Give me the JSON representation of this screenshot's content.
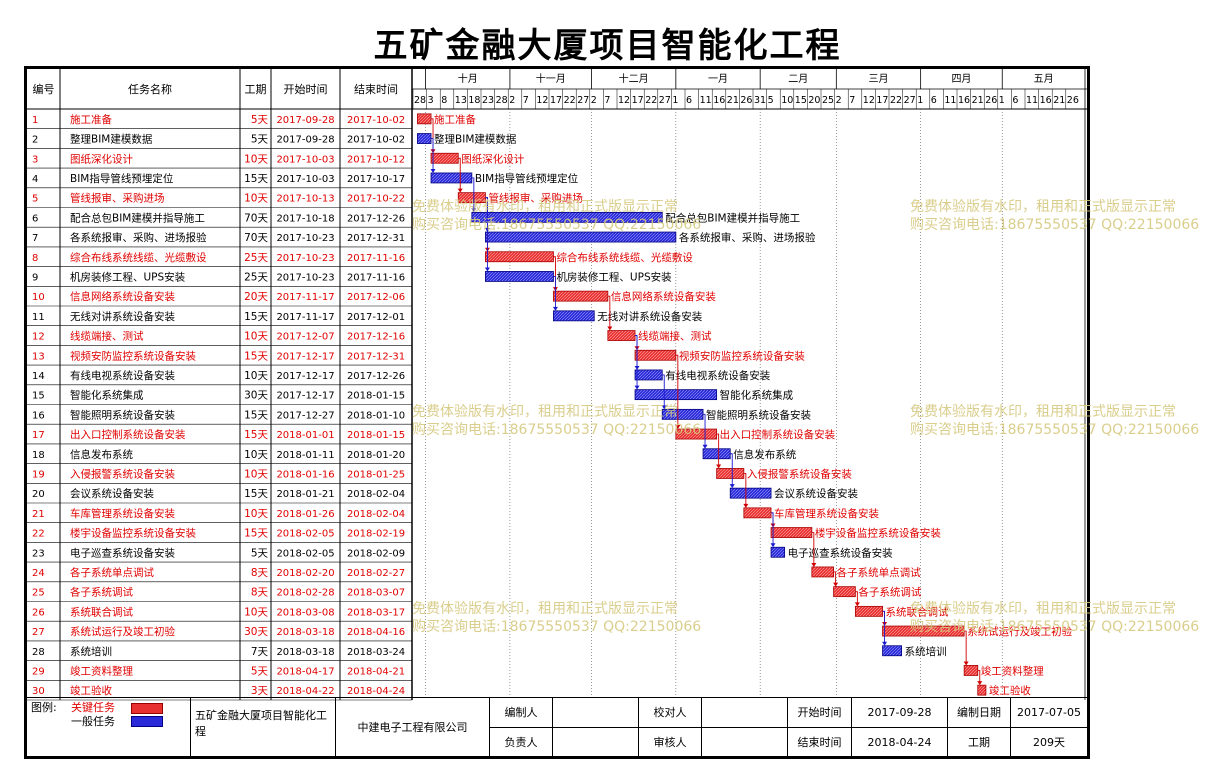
{
  "title": "五矿金融大厦项目智能化工程",
  "columns": {
    "id": "编号",
    "name": "任务名称",
    "duration": "工期",
    "start": "开始时间",
    "end": "结束时间"
  },
  "months": [
    "十月",
    "十一月",
    "十二月",
    "一月",
    "二月",
    "三月",
    "四月",
    "五月"
  ],
  "day_ticks": [
    "28",
    "3",
    "8",
    "13",
    "18",
    "23",
    "28",
    "2",
    "7",
    "12",
    "17",
    "22",
    "27",
    "2",
    "7",
    "12",
    "17",
    "22",
    "27",
    "1",
    "6",
    "11",
    "16",
    "21",
    "26",
    "31",
    "5",
    "10",
    "15",
    "20",
    "25",
    "2",
    "7",
    "12",
    "17",
    "22",
    "27",
    "1",
    "6",
    "11",
    "16",
    "21",
    "26",
    "1",
    "6",
    "11",
    "16",
    "21",
    "26"
  ],
  "colors": {
    "critical": "#e83030",
    "critical_text": "#e00000",
    "normal": "#2a2ad8",
    "link": "#1a1ad0",
    "watermark": "#d6c980"
  },
  "chart_data": {
    "type": "gantt",
    "tasks": [
      {
        "id": "1",
        "name": "施工准备",
        "duration": "5天",
        "start": "2017-09-28",
        "end": "2017-10-02",
        "critical": true
      },
      {
        "id": "2",
        "name": "整理BIM建模数据",
        "duration": "5天",
        "start": "2017-09-28",
        "end": "2017-10-02",
        "critical": false
      },
      {
        "id": "3",
        "name": "图纸深化设计",
        "duration": "10天",
        "start": "2017-10-03",
        "end": "2017-10-12",
        "critical": true
      },
      {
        "id": "4",
        "name": "BIM指导管线预埋定位",
        "duration": "15天",
        "start": "2017-10-03",
        "end": "2017-10-17",
        "critical": false
      },
      {
        "id": "5",
        "name": "管线报审、采购进场",
        "duration": "10天",
        "start": "2017-10-13",
        "end": "2017-10-22",
        "critical": true
      },
      {
        "id": "6",
        "name": "配合总包BIM建模并指导施工",
        "duration": "70天",
        "start": "2017-10-18",
        "end": "2017-12-26",
        "critical": false
      },
      {
        "id": "7",
        "name": "各系统报审、采购、进场报验",
        "duration": "70天",
        "start": "2017-10-23",
        "end": "2017-12-31",
        "critical": false
      },
      {
        "id": "8",
        "name": "综合布线系统线缆、光缆敷设",
        "duration": "25天",
        "start": "2017-10-23",
        "end": "2017-11-16",
        "critical": true
      },
      {
        "id": "9",
        "name": "机房装修工程、UPS安装",
        "duration": "25天",
        "start": "2017-10-23",
        "end": "2017-11-16",
        "critical": false
      },
      {
        "id": "10",
        "name": "信息网络系统设备安装",
        "duration": "20天",
        "start": "2017-11-17",
        "end": "2017-12-06",
        "critical": true
      },
      {
        "id": "11",
        "name": "无线对讲系统设备安装",
        "duration": "15天",
        "start": "2017-11-17",
        "end": "2017-12-01",
        "critical": false
      },
      {
        "id": "12",
        "name": "线缆端接、测试",
        "duration": "10天",
        "start": "2017-12-07",
        "end": "2017-12-16",
        "critical": true
      },
      {
        "id": "13",
        "name": "视频安防监控系统设备安装",
        "duration": "15天",
        "start": "2017-12-17",
        "end": "2017-12-31",
        "critical": true
      },
      {
        "id": "14",
        "name": "有线电视系统设备安装",
        "duration": "10天",
        "start": "2017-12-17",
        "end": "2017-12-26",
        "critical": false
      },
      {
        "id": "15",
        "name": "智能化系统集成",
        "duration": "30天",
        "start": "2017-12-17",
        "end": "2018-01-15",
        "critical": false
      },
      {
        "id": "16",
        "name": "智能照明系统设备安装",
        "duration": "15天",
        "start": "2017-12-27",
        "end": "2018-01-10",
        "critical": false
      },
      {
        "id": "17",
        "name": "出入口控制系统设备安装",
        "duration": "15天",
        "start": "2018-01-01",
        "end": "2018-01-15",
        "critical": true
      },
      {
        "id": "18",
        "name": "信息发布系统",
        "duration": "10天",
        "start": "2018-01-11",
        "end": "2018-01-20",
        "critical": false
      },
      {
        "id": "19",
        "name": "入侵报警系统设备安装",
        "duration": "10天",
        "start": "2018-01-16",
        "end": "2018-01-25",
        "critical": true
      },
      {
        "id": "20",
        "name": "会议系统设备安装",
        "duration": "15天",
        "start": "2018-01-21",
        "end": "2018-02-04",
        "critical": false
      },
      {
        "id": "21",
        "name": "车库管理系统设备安装",
        "duration": "10天",
        "start": "2018-01-26",
        "end": "2018-02-04",
        "critical": true
      },
      {
        "id": "22",
        "name": "楼宇设备监控系统设备安装",
        "duration": "15天",
        "start": "2018-02-05",
        "end": "2018-02-19",
        "critical": true
      },
      {
        "id": "23",
        "name": "电子巡查系统设备安装",
        "duration": "5天",
        "start": "2018-02-05",
        "end": "2018-02-09",
        "critical": false
      },
      {
        "id": "24",
        "name": "各子系统单点调试",
        "duration": "8天",
        "start": "2018-02-20",
        "end": "2018-02-27",
        "critical": true
      },
      {
        "id": "25",
        "name": "各子系统调试",
        "duration": "8天",
        "start": "2018-02-28",
        "end": "2018-03-07",
        "critical": true
      },
      {
        "id": "26",
        "name": "系统联合调试",
        "duration": "10天",
        "start": "2018-03-08",
        "end": "2018-03-17",
        "critical": true
      },
      {
        "id": "27",
        "name": "系统试运行及竣工初验",
        "duration": "30天",
        "start": "2018-03-18",
        "end": "2018-04-16",
        "critical": true
      },
      {
        "id": "28",
        "name": "系统培训",
        "duration": "7天",
        "start": "2018-03-18",
        "end": "2018-03-24",
        "critical": false
      },
      {
        "id": "29",
        "name": "竣工资料整理",
        "duration": "5天",
        "start": "2018-04-17",
        "end": "2018-04-21",
        "critical": true
      },
      {
        "id": "30",
        "name": "竣工验收",
        "duration": "3天",
        "start": "2018-04-22",
        "end": "2018-04-24",
        "critical": true
      }
    ],
    "links": [
      [
        1,
        3
      ],
      [
        2,
        4
      ],
      [
        3,
        5
      ],
      [
        4,
        6
      ],
      [
        5,
        8
      ],
      [
        5,
        7
      ],
      [
        5,
        9
      ],
      [
        8,
        10
      ],
      [
        9,
        11
      ],
      [
        10,
        12
      ],
      [
        12,
        13
      ],
      [
        12,
        14
      ],
      [
        12,
        15
      ],
      [
        13,
        17
      ],
      [
        14,
        16
      ],
      [
        16,
        18
      ],
      [
        17,
        19
      ],
      [
        19,
        21
      ],
      [
        18,
        20
      ],
      [
        21,
        22
      ],
      [
        21,
        23
      ],
      [
        22,
        24
      ],
      [
        24,
        25
      ],
      [
        25,
        26
      ],
      [
        26,
        27
      ],
      [
        26,
        28
      ],
      [
        27,
        29
      ],
      [
        29,
        30
      ]
    ]
  },
  "watermark": {
    "line1": "免费体验版有水印，租用和正式版显示正常",
    "line2": "购买咨询电话:18675550537 QQ:22150066"
  },
  "footer": {
    "legend_label": "图例:",
    "critical_label": "关键任务",
    "normal_label": "一般任务",
    "project": "五矿金融大厦项目智能化工程",
    "company": "中建电子工程有限公司",
    "prepared_label": "编制人",
    "responsible_label": "负责人",
    "checker_label": "校对人",
    "reviewer_label": "审核人",
    "start_label": "开始时间",
    "start_value": "2017-09-28",
    "end_label": "结束时间",
    "end_value": "2018-04-24",
    "compile_date_label": "编制日期",
    "compile_date_value": "2017-07-05",
    "period_label": "工期",
    "period_value": "209天"
  }
}
